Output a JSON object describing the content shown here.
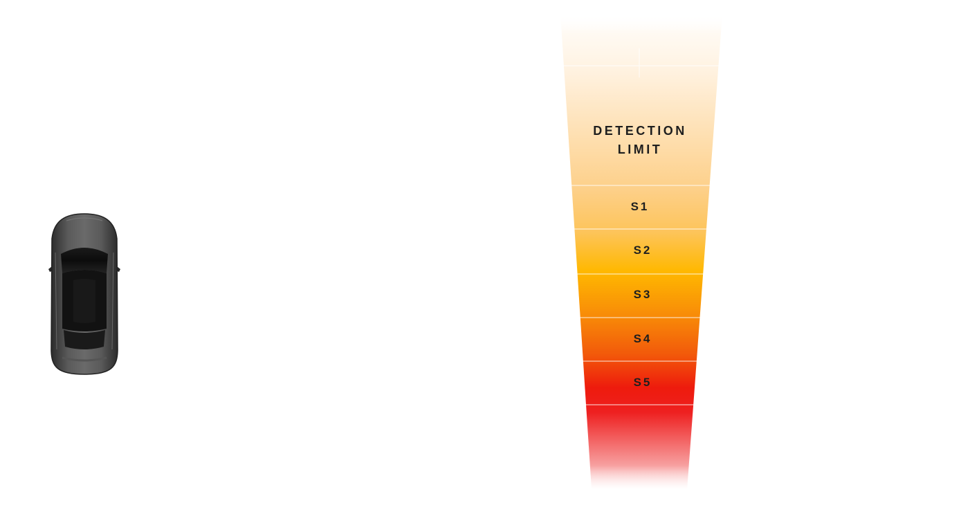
{
  "diagram": {
    "detection_label_line1": "DETECTION",
    "detection_label_line2": "LIMIT",
    "zones": [
      {
        "label": "S1"
      },
      {
        "label": "S2"
      },
      {
        "label": "S3"
      },
      {
        "label": "S4"
      },
      {
        "label": "S5"
      }
    ]
  },
  "colors": {
    "top_fade": "#fff3e2",
    "detection": "#fdd28a",
    "s1": "#fdc45a",
    "s2": "#ffb600",
    "s3": "#f88a08",
    "s4": "#f25a0a",
    "s5": "#ee1b0d",
    "bottom_red": "#ee2020",
    "label_text": "#1e1e1e",
    "car_body": "#3a3a3a"
  }
}
